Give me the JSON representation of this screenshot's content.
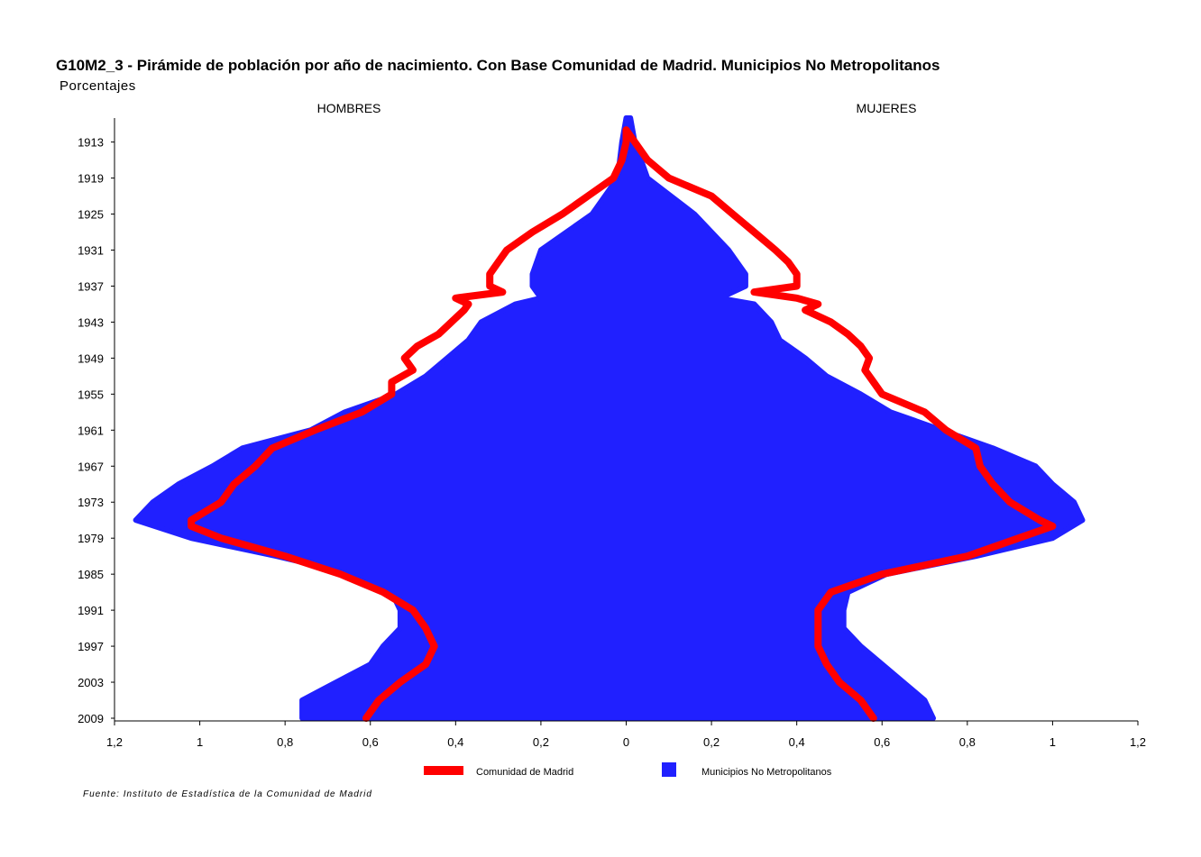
{
  "title": "G10M2_3 - Pirámide de población por año de nacimiento. Con Base Comunidad de Madrid.  Municipios No Metropolitanos",
  "subtitle": "Porcentajes",
  "source": "Fuente: Instituto de Estadística de la Comunidad de Madrid",
  "chart_data": {
    "type": "area",
    "title": "G10M2_3 - Pirámide de población por año de nacimiento. Con Base Comunidad de Madrid.  Municipios No Metropolitanos",
    "subtitle": "Porcentajes",
    "left_label": "HOMBRES",
    "right_label": "MUJERES",
    "y_ticks": [
      "1913",
      "1919",
      "1925",
      "1931",
      "1937",
      "1943",
      "1949",
      "1955",
      "1961",
      "1967",
      "1973",
      "1979",
      "1985",
      "1991",
      "1997",
      "2003",
      "2009"
    ],
    "x_ticks": [
      "1,2",
      "1",
      "0,8",
      "0,6",
      "0,4",
      "0,2",
      "0",
      "0,2",
      "0,4",
      "0,6",
      "0,8",
      "1",
      "1,2"
    ],
    "xlim": [
      -1.2,
      1.2
    ],
    "ylim": [
      1909,
      2009
    ],
    "legend_position": "bottom",
    "colors": {
      "madrid": "#ff0000",
      "municipios": "#2020ff"
    },
    "series": [
      {
        "name": "Municipios No Metropolitanos",
        "years": [
          1909,
          1913,
          1919,
          1925,
          1931,
          1935,
          1937,
          1939,
          1940,
          1943,
          1946,
          1949,
          1952,
          1955,
          1958,
          1961,
          1964,
          1967,
          1970,
          1973,
          1976,
          1979,
          1982,
          1985,
          1988,
          1991,
          1994,
          1997,
          2000,
          2003,
          2006,
          2009
        ],
        "hombres": [
          0.0,
          0.01,
          0.02,
          0.08,
          0.2,
          0.22,
          0.22,
          0.2,
          0.26,
          0.34,
          0.37,
          0.42,
          0.47,
          0.54,
          0.66,
          0.74,
          0.9,
          0.97,
          1.05,
          1.11,
          1.15,
          1.02,
          0.82,
          0.64,
          0.55,
          0.53,
          0.53,
          0.57,
          0.6,
          0.68,
          0.76,
          0.76
        ],
        "mujeres": [
          0.01,
          0.02,
          0.05,
          0.16,
          0.24,
          0.28,
          0.28,
          0.22,
          0.3,
          0.34,
          0.36,
          0.42,
          0.47,
          0.55,
          0.62,
          0.74,
          0.86,
          0.96,
          1.0,
          1.05,
          1.07,
          1.0,
          0.82,
          0.61,
          0.52,
          0.51,
          0.51,
          0.55,
          0.6,
          0.65,
          0.7,
          0.72
        ]
      },
      {
        "name": "Comunidad de Madrid",
        "years": [
          1911,
          1913,
          1916,
          1919,
          1922,
          1925,
          1928,
          1931,
          1933,
          1935,
          1937,
          1938,
          1939,
          1940,
          1941,
          1943,
          1945,
          1947,
          1949,
          1951,
          1953,
          1955,
          1958,
          1961,
          1964,
          1967,
          1970,
          1973,
          1976,
          1977,
          1979,
          1982,
          1985,
          1988,
          1991,
          1994,
          1997,
          2000,
          2003,
          2006,
          2009
        ],
        "hombres": [
          0.0,
          0.0,
          0.01,
          0.03,
          0.09,
          0.15,
          0.22,
          0.28,
          0.3,
          0.32,
          0.32,
          0.29,
          0.4,
          0.37,
          0.38,
          0.41,
          0.44,
          0.49,
          0.52,
          0.5,
          0.55,
          0.55,
          0.62,
          0.73,
          0.83,
          0.87,
          0.92,
          0.95,
          1.02,
          1.02,
          0.95,
          0.8,
          0.67,
          0.57,
          0.5,
          0.47,
          0.45,
          0.47,
          0.53,
          0.58,
          0.61
        ],
        "mujeres": [
          0.0,
          0.02,
          0.05,
          0.1,
          0.2,
          0.25,
          0.3,
          0.35,
          0.38,
          0.4,
          0.4,
          0.3,
          0.4,
          0.45,
          0.42,
          0.48,
          0.52,
          0.55,
          0.57,
          0.56,
          0.58,
          0.6,
          0.7,
          0.75,
          0.82,
          0.83,
          0.86,
          0.9,
          0.97,
          1.0,
          0.92,
          0.8,
          0.6,
          0.48,
          0.45,
          0.45,
          0.45,
          0.47,
          0.5,
          0.55,
          0.58
        ]
      }
    ]
  }
}
